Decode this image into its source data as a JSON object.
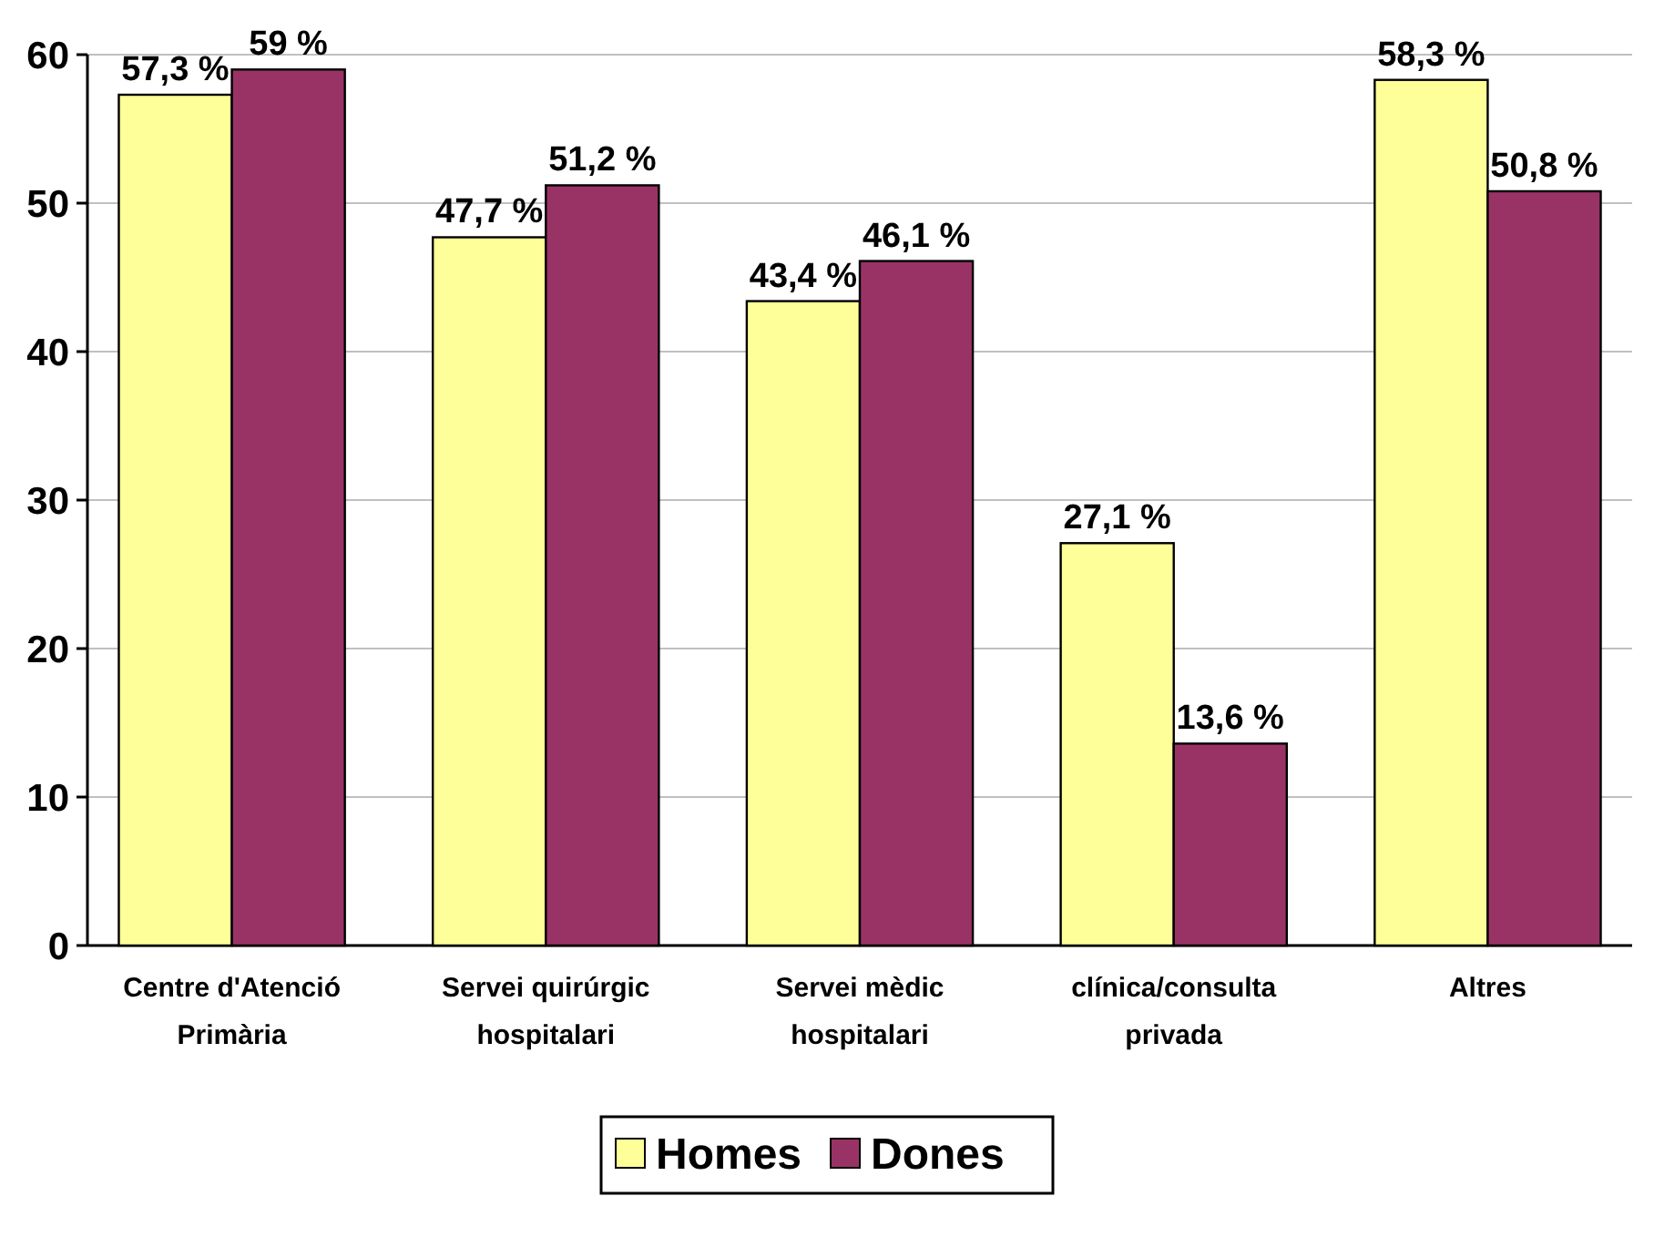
{
  "chart_data": {
    "type": "bar",
    "categories": [
      "Centre d'Atenció Primària",
      "Servei quirúrgic hospitalari",
      "Servei mèdic hospitalari",
      "clínica/consulta privada",
      "Altres"
    ],
    "series": [
      {
        "name": "Homes",
        "color": "#ffff99",
        "values": [
          57.3,
          47.7,
          43.4,
          27.1,
          58.3
        ],
        "value_labels": [
          "57,3 %",
          "47,7 %",
          "43,4 %",
          "27,1 %",
          "58,3 %"
        ]
      },
      {
        "name": "Dones",
        "color": "#993366",
        "values": [
          59,
          51.2,
          46.1,
          13.6,
          50.8
        ],
        "value_labels": [
          "59 %",
          "51,2 %",
          "46,1 %",
          "13,6 %",
          "50,8 %"
        ]
      }
    ],
    "ylim": [
      0,
      60
    ],
    "yticks": [
      0,
      10,
      20,
      30,
      40,
      50,
      60
    ],
    "grid": "y",
    "legend": "bottom"
  }
}
